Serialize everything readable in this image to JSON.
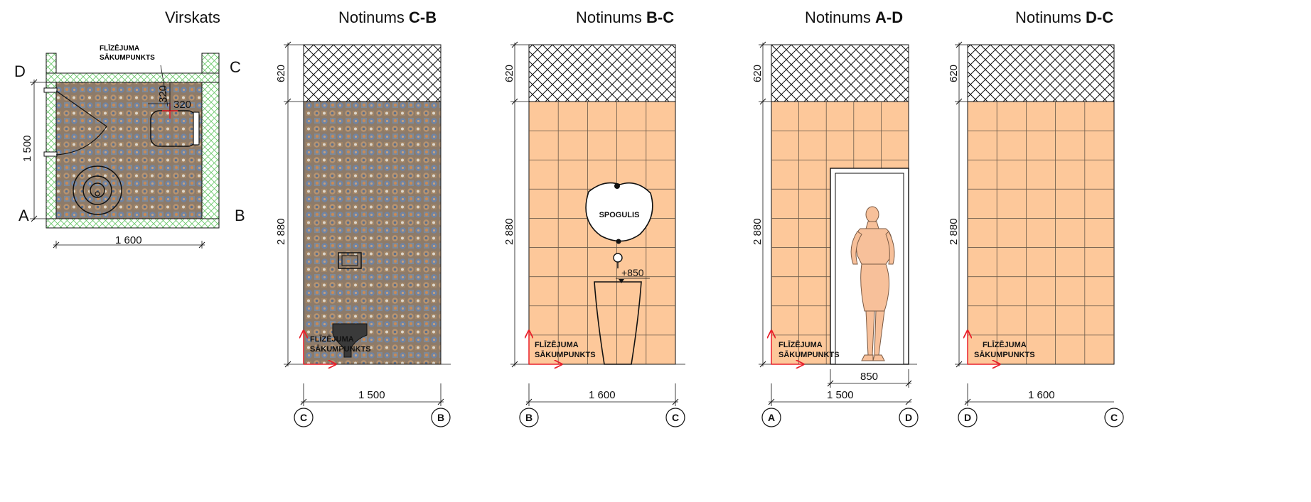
{
  "views": {
    "top": {
      "title": "Virskats"
    },
    "cb": {
      "prefix": "Notinums ",
      "code": "C-B"
    },
    "bc": {
      "prefix": "Notinums ",
      "code": "B-C"
    },
    "ad": {
      "prefix": "Notinums  ",
      "code": "A-D"
    },
    "dc": {
      "prefix": "Notinums ",
      "code": "D-C"
    }
  },
  "plan": {
    "start_line1": "FLĪZĒJUMA",
    "start_line2": "SĀKUMPUNKTS",
    "corner_a": "A",
    "corner_b": "B",
    "corner_c": "C",
    "corner_d": "D",
    "dim_depth": "1 500",
    "dim_width": "1 600",
    "dim_offset_x": "320",
    "dim_offset_y": "320"
  },
  "elevations": {
    "dim_top": "620",
    "dim_height": "2 880",
    "start_line1": "FLĪZĒJUMA",
    "start_line2": "SĀKUMPUNKTS",
    "cb": {
      "width": "1 500",
      "left_axis": "C",
      "right_axis": "B"
    },
    "bc": {
      "width": "1 600",
      "left_axis": "B",
      "right_axis": "C",
      "mirror": "SPOGULIS",
      "height_mark": "+850"
    },
    "ad": {
      "width": "1 500",
      "door_width": "850",
      "left_axis": "A",
      "right_axis": "D"
    },
    "dc": {
      "width": "1 600",
      "left_axis": "D",
      "right_axis": "C"
    }
  },
  "colors": {
    "tile_orange": "#fdc89a",
    "hatch_green": "#7fd17f",
    "arrow_red": "#e8202a"
  }
}
